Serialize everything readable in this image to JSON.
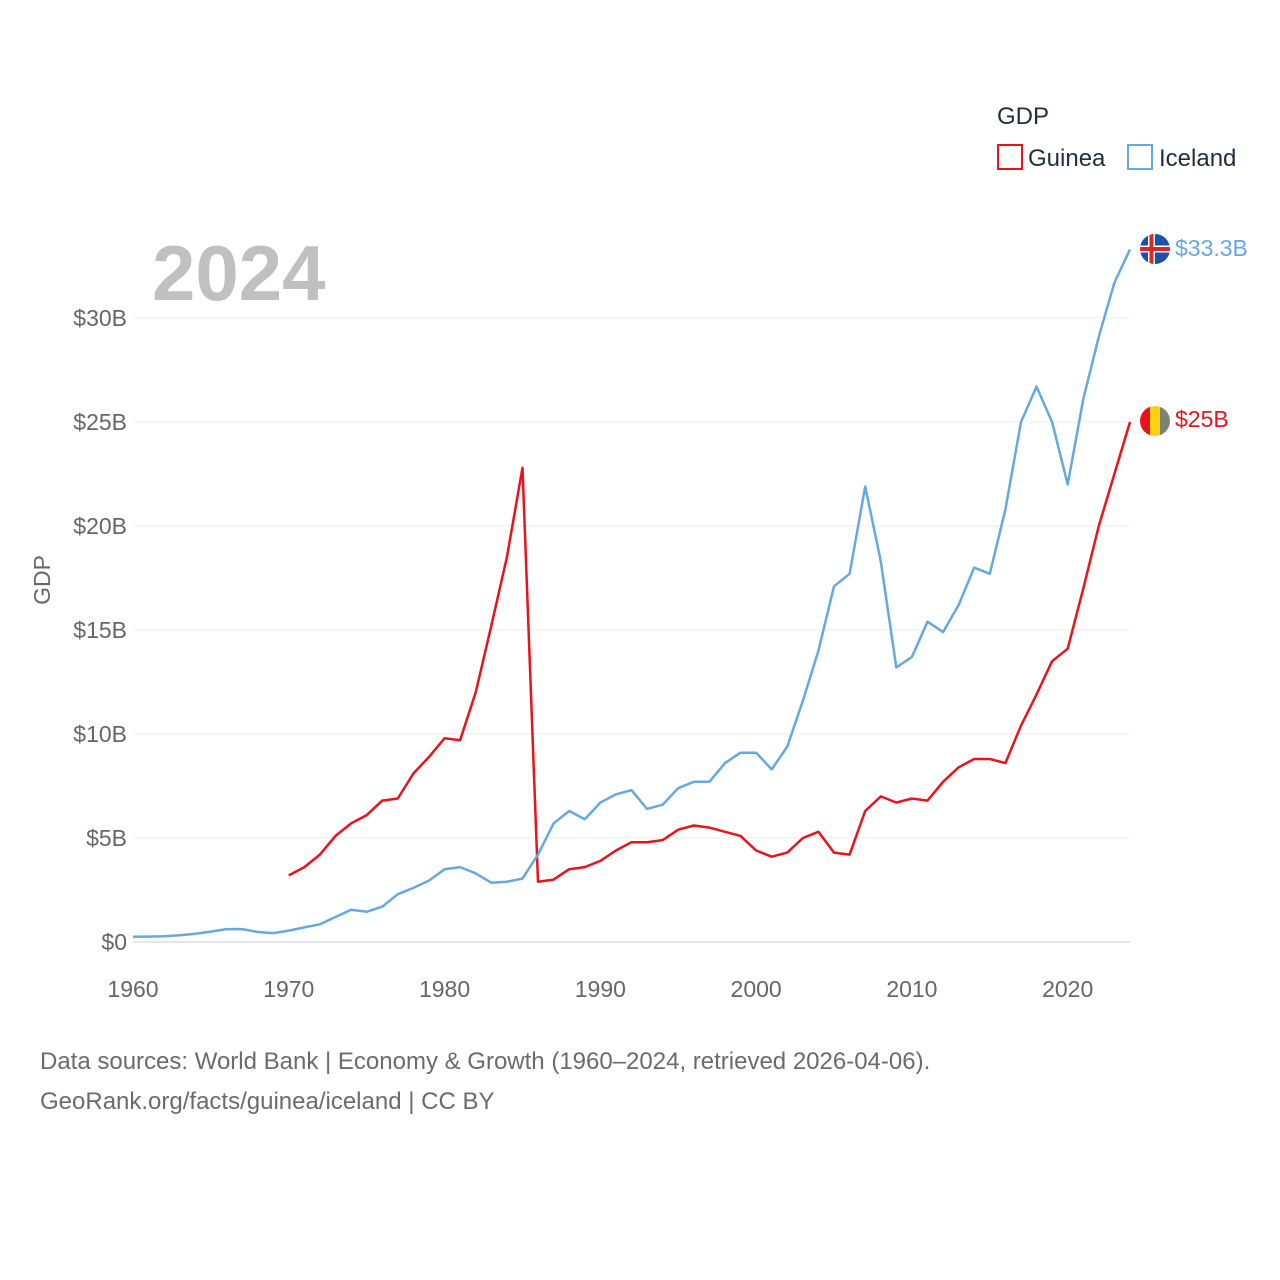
{
  "chart_data": {
    "type": "line",
    "year_label": "2024",
    "ylabel": "GDP",
    "xlabel": "",
    "xlim": [
      1960,
      2024
    ],
    "ylim": [
      0,
      33.5
    ],
    "x_ticks": [
      1960,
      1970,
      1980,
      1990,
      2000,
      2010,
      2020
    ],
    "x_tick_labels": [
      "1960",
      "1970",
      "1980",
      "1990",
      "2000",
      "2010",
      "2020"
    ],
    "y_ticks": [
      0,
      5,
      10,
      15,
      20,
      25,
      30
    ],
    "y_tick_labels": [
      "$0",
      "$5B",
      "$10B",
      "$15B",
      "$20B",
      "$25B",
      "$30B"
    ],
    "legend": {
      "title": "GDP",
      "position": "top-right"
    },
    "series": [
      {
        "name": "Guinea",
        "color": "#e8131b",
        "end_label": "$25B",
        "flag": "guinea-flag",
        "x": [
          1970,
          1971,
          1972,
          1973,
          1974,
          1975,
          1976,
          1977,
          1978,
          1979,
          1980,
          1981,
          1982,
          1983,
          1984,
          1985,
          1986,
          1987,
          1988,
          1989,
          1990,
          1991,
          1992,
          1993,
          1994,
          1995,
          1996,
          1997,
          1998,
          1999,
          2000,
          2001,
          2002,
          2003,
          2004,
          2005,
          2006,
          2007,
          2008,
          2009,
          2010,
          2011,
          2012,
          2013,
          2014,
          2015,
          2016,
          2017,
          2018,
          2019,
          2020,
          2021,
          2022,
          2023,
          2024
        ],
        "values": [
          3.2,
          3.6,
          4.2,
          5.1,
          5.7,
          6.1,
          6.8,
          6.9,
          8.1,
          8.9,
          9.8,
          9.7,
          12.0,
          15.2,
          18.5,
          22.8,
          2.9,
          3.0,
          3.5,
          3.6,
          3.9,
          4.4,
          4.8,
          4.8,
          4.9,
          5.4,
          5.6,
          5.5,
          5.3,
          5.1,
          4.4,
          4.1,
          4.3,
          5.0,
          5.3,
          4.3,
          4.2,
          6.3,
          7.0,
          6.7,
          6.9,
          6.8,
          7.7,
          8.4,
          8.8,
          8.8,
          8.6,
          10.4,
          11.9,
          13.5,
          14.1,
          17.0,
          20.0,
          22.5,
          25.0
        ]
      },
      {
        "name": "Iceland",
        "color": "#66a8e0",
        "end_label": "$33.3B",
        "flag": "iceland-flag",
        "x": [
          1960,
          1961,
          1962,
          1963,
          1964,
          1965,
          1966,
          1967,
          1968,
          1969,
          1970,
          1971,
          1972,
          1973,
          1974,
          1975,
          1976,
          1977,
          1978,
          1979,
          1980,
          1981,
          1982,
          1983,
          1984,
          1985,
          1986,
          1987,
          1988,
          1989,
          1990,
          1991,
          1992,
          1993,
          1994,
          1995,
          1996,
          1997,
          1998,
          1999,
          2000,
          2001,
          2002,
          2003,
          2004,
          2005,
          2006,
          2007,
          2008,
          2009,
          2010,
          2011,
          2012,
          2013,
          2014,
          2015,
          2016,
          2017,
          2018,
          2019,
          2020,
          2021,
          2022,
          2023,
          2024
        ],
        "values": [
          0.25,
          0.26,
          0.28,
          0.32,
          0.4,
          0.5,
          0.62,
          0.62,
          0.48,
          0.43,
          0.55,
          0.7,
          0.85,
          1.2,
          1.55,
          1.45,
          1.7,
          2.3,
          2.6,
          2.95,
          3.5,
          3.6,
          3.3,
          2.85,
          2.9,
          3.05,
          4.2,
          5.7,
          6.3,
          5.9,
          6.7,
          7.1,
          7.3,
          6.4,
          6.6,
          7.4,
          7.7,
          7.7,
          8.6,
          9.1,
          9.1,
          8.3,
          9.4,
          11.6,
          14.0,
          17.1,
          17.7,
          21.9,
          18.3,
          13.2,
          13.7,
          15.4,
          14.9,
          16.2,
          18.0,
          17.7,
          20.8,
          25.0,
          26.7,
          25.0,
          22.0,
          26.1,
          29.1,
          31.7,
          33.3
        ]
      }
    ]
  },
  "footer": {
    "line1": "Data sources: World Bank | Economy & Growth (1960–2024, retrieved 2026-04-06).",
    "line2": "GeoRank.org/facts/guinea/iceland | CC BY"
  }
}
